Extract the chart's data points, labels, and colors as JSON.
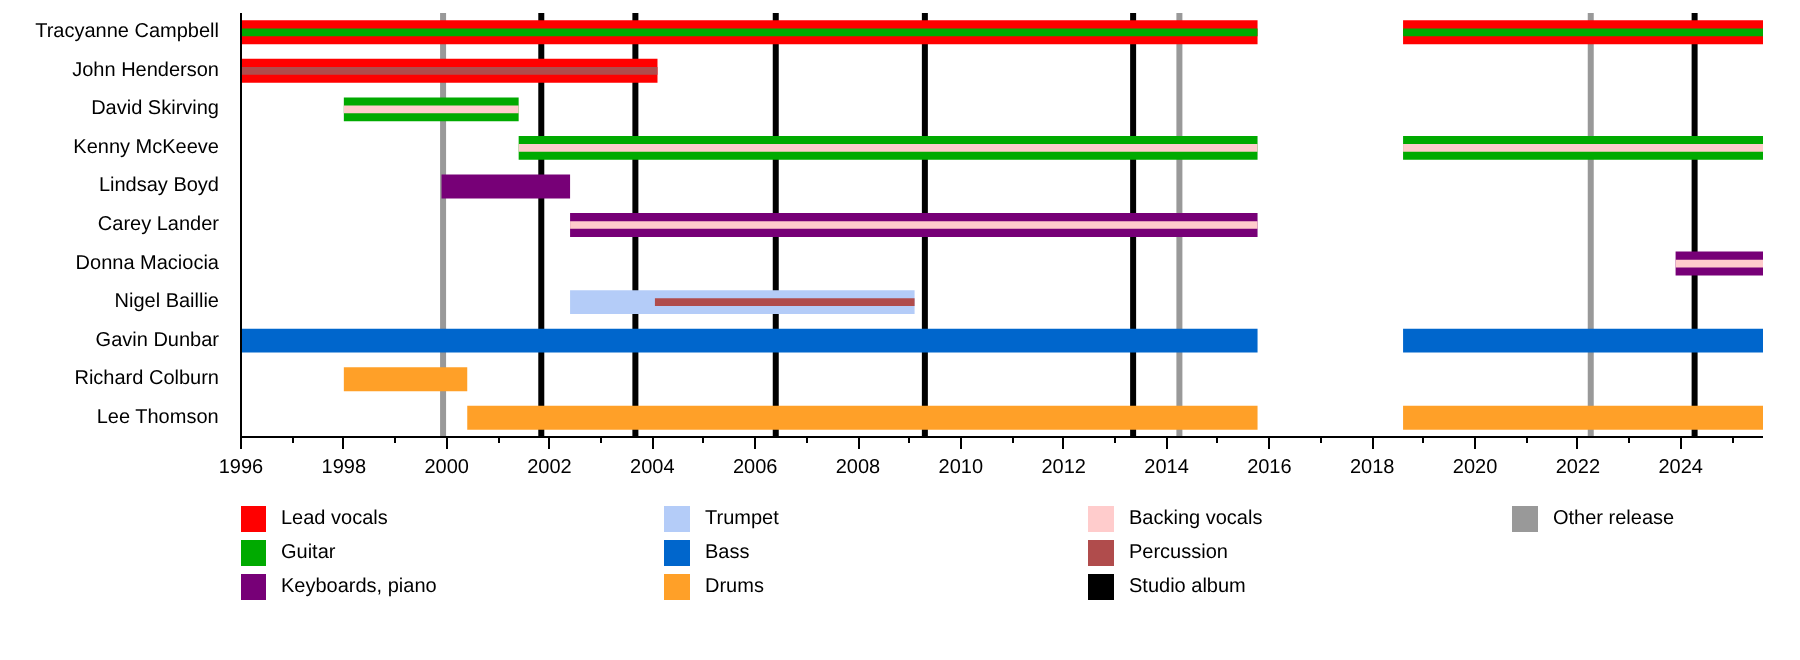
{
  "chart_data": {
    "type": "bar",
    "orientation": "horizontal",
    "legend": "bottom",
    "grid": false,
    "categories": [
      "Tracyanne Campbell",
      "John Henderson",
      "David Skirving",
      "Kenny McKeeve",
      "Lindsay Boyd",
      "Carey Lander",
      "Donna Maciocia",
      "Nigel Baillie",
      "Gavin Dunbar",
      "Richard Colburn",
      "Lee Thomson"
    ],
    "xlim": [
      1996,
      2025.6
    ],
    "xticks": [
      1996,
      {
        "value": 1997,
        "label": null
      },
      1998,
      {
        "value": 1999,
        "label": null
      },
      2000,
      {
        "value": 2001,
        "label": null
      },
      2002,
      {
        "value": 2003,
        "label": null
      },
      2004,
      {
        "value": 2005,
        "label": null
      },
      2006,
      {
        "value": 2007,
        "label": null
      },
      2008,
      {
        "value": 2009,
        "label": null
      },
      2010,
      {
        "value": 2011,
        "label": null
      },
      2012,
      {
        "value": 2013,
        "label": null
      },
      2014,
      {
        "value": 2015,
        "label": null
      },
      2016,
      {
        "value": 2017,
        "label": null
      },
      2018,
      {
        "value": 2019,
        "label": null
      },
      2020,
      {
        "value": 2021,
        "label": null
      },
      2022,
      {
        "value": 2023,
        "label": null
      },
      2024,
      {
        "value": 2025,
        "label": null
      }
    ],
    "series": [
      {
        "name": "Lead vocals",
        "color": "#ff0000",
        "base": [
          1996,
          1996,
          null,
          null,
          null,
          null,
          null,
          null,
          null,
          null,
          null
        ],
        "values": [
          19.77,
          8.1,
          null,
          null,
          null,
          null,
          null,
          null,
          null,
          null,
          null
        ]
      },
      {
        "name": "Guitar",
        "color": "#00aa00",
        "base": [
          1996,
          null,
          1998,
          2001.4,
          null,
          null,
          null,
          null,
          null,
          null,
          null
        ],
        "values": [
          19.77,
          null,
          3.4,
          14.37,
          null,
          null,
          null,
          null,
          null,
          null,
          null
        ]
      },
      {
        "name": "Keyboards, piano",
        "color": "#770077",
        "base": [
          null,
          null,
          null,
          null,
          1999.9,
          2002.4,
          2023.9,
          null,
          null,
          null,
          null
        ],
        "values": [
          null,
          null,
          null,
          null,
          2.5,
          13.37,
          1.7,
          null,
          null,
          null,
          null
        ]
      },
      {
        "name": "Trumpet",
        "color": "#b4ccf8",
        "base": [
          null,
          null,
          null,
          null,
          null,
          null,
          null,
          2002.4,
          null,
          null,
          null
        ],
        "values": [
          null,
          null,
          null,
          null,
          null,
          null,
          null,
          6.7,
          null,
          null,
          null
        ]
      },
      {
        "name": "Bass",
        "color": "#0066cc",
        "base": [
          null,
          null,
          null,
          null,
          null,
          null,
          null,
          null,
          1996,
          null,
          null
        ],
        "values": [
          null,
          null,
          null,
          null,
          null,
          null,
          null,
          null,
          19.77,
          null,
          null
        ]
      },
      {
        "name": "Drums",
        "color": "#ffa028",
        "base": [
          null,
          null,
          null,
          null,
          null,
          null,
          null,
          null,
          null,
          1998,
          2000.4
        ],
        "values": [
          null,
          null,
          null,
          null,
          null,
          null,
          null,
          null,
          null,
          2.4,
          15.37
        ]
      },
      {
        "name": "Backing vocals",
        "color": "#ffcccc",
        "base": [
          null,
          null,
          1998,
          2001.4,
          null,
          2002.4,
          2023.9,
          null,
          null,
          null,
          null
        ],
        "values": [
          null,
          null,
          3.4,
          14.37,
          null,
          13.37,
          1.7,
          null,
          null,
          null,
          null
        ]
      },
      {
        "name": "Percussion",
        "color": "#b04c4c",
        "base": [
          null,
          1996,
          null,
          null,
          null,
          null,
          null,
          2004.05,
          null,
          null,
          null
        ],
        "values": [
          null,
          8.1,
          null,
          null,
          null,
          null,
          null,
          5.05,
          null,
          null,
          null
        ]
      },
      {
        "color": "#ff0000",
        "base": [
          2018.6,
          null,
          null,
          null,
          null,
          null,
          null,
          null,
          null,
          null,
          null
        ],
        "values": [
          7,
          null,
          null,
          null,
          null,
          null,
          null,
          null,
          null,
          null,
          null
        ]
      },
      {
        "color": "#00aa00",
        "base": [
          2018.6,
          null,
          null,
          2018.6,
          null,
          null,
          null,
          null,
          null,
          null,
          null
        ],
        "values": [
          7,
          null,
          null,
          7,
          null,
          null,
          null,
          null,
          null,
          null,
          null
        ]
      },
      {
        "color": "#0066cc",
        "base": [
          null,
          null,
          null,
          null,
          null,
          null,
          null,
          null,
          2018.6,
          null,
          null
        ],
        "values": [
          null,
          null,
          null,
          null,
          null,
          null,
          null,
          null,
          7,
          null,
          null
        ]
      },
      {
        "color": "#ffa028",
        "base": [
          null,
          null,
          null,
          null,
          null,
          null,
          null,
          null,
          null,
          null,
          2018.6
        ],
        "values": [
          null,
          null,
          null,
          null,
          null,
          null,
          null,
          null,
          null,
          null,
          7
        ]
      },
      {
        "color": "#ffcccc",
        "base": [
          null,
          null,
          null,
          2018.6,
          null,
          null,
          null,
          null,
          null,
          null,
          null
        ],
        "values": [
          null,
          null,
          null,
          7,
          null,
          null,
          null,
          null,
          null,
          null,
          null
        ]
      }
    ],
    "ref_lines": [
      {
        "axis": "x",
        "value": 2001.84,
        "label": "Studio album",
        "color": "#000000"
      },
      {
        "axis": "x",
        "value": 2003.67,
        "color": "#000000"
      },
      {
        "axis": "x",
        "value": 2006.4,
        "color": "#000000"
      },
      {
        "axis": "x",
        "value": 2009.3,
        "color": "#000000"
      },
      {
        "axis": "x",
        "value": 2013.35,
        "color": "#000000"
      },
      {
        "axis": "x",
        "value": 2024.27,
        "color": "#000000"
      },
      {
        "axis": "x",
        "value": 1999.93,
        "label": "Other release",
        "color": "#999999"
      },
      {
        "axis": "x",
        "value": 2014.25,
        "color": "#999999"
      },
      {
        "axis": "x",
        "value": 2022.25,
        "color": "#999999"
      }
    ]
  }
}
